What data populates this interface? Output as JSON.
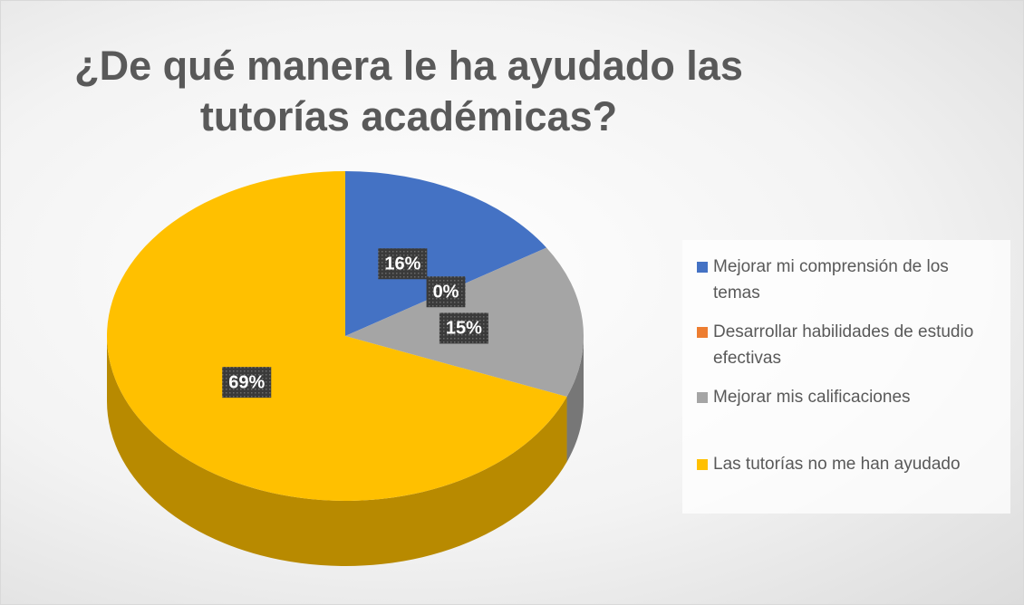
{
  "chart_data": {
    "type": "pie",
    "title": "¿De qué manera le ha ayudado las tutorías académicas?",
    "categories": [
      "Mejorar mi comprensión de los temas",
      "Desarrollar habilidades de estudio efectivas",
      "Mejorar mis calificaciones",
      "Las tutorías no me han ayudado"
    ],
    "values": [
      16,
      0,
      15,
      69
    ],
    "value_labels": [
      "16%",
      "0%",
      "15%",
      "69%"
    ],
    "colors": [
      "#4472c4",
      "#ed7d31",
      "#a5a5a5",
      "#ffc000"
    ],
    "legend": "right"
  }
}
